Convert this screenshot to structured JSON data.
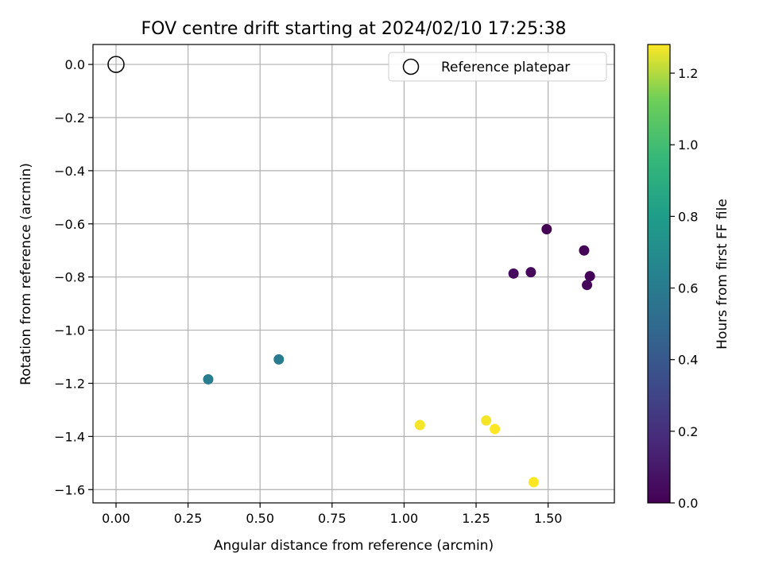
{
  "chart_data": {
    "type": "scatter",
    "title": "FOV centre drift starting at 2024/02/10 17:25:38",
    "xlabel": "Angular distance from reference (arcmin)",
    "ylabel": "Rotation from reference (arcmin)",
    "xlim": [
      -0.08,
      1.73
    ],
    "ylim": [
      -1.65,
      0.075
    ],
    "xticks": [
      0.0,
      0.25,
      0.5,
      0.75,
      1.0,
      1.25,
      1.5
    ],
    "xtick_labels": [
      "0.00",
      "0.25",
      "0.50",
      "0.75",
      "1.00",
      "1.25",
      "1.50"
    ],
    "yticks": [
      0.0,
      -0.2,
      -0.4,
      -0.6,
      -0.8,
      -1.0,
      -1.2,
      -1.4,
      -1.6
    ],
    "ytick_labels": [
      "0.0",
      "−0.2",
      "−0.4",
      "−0.6",
      "−0.8",
      "−1.0",
      "−1.2",
      "−1.4",
      "−1.6"
    ],
    "grid": true,
    "legend": {
      "placement": "top-right",
      "entries": [
        {
          "label": "Reference platepar",
          "marker": "hollow-circle"
        }
      ]
    },
    "reference_point": {
      "x": 0.0,
      "y": 0.0
    },
    "colormap": "viridis",
    "colorbar": {
      "label": "Hours from first FF file",
      "range": [
        0.0,
        1.28
      ],
      "ticks": [
        0.0,
        0.2,
        0.4,
        0.6,
        0.8,
        1.0,
        1.2
      ],
      "tick_labels": [
        "0.0",
        "0.2",
        "0.4",
        "0.6",
        "0.8",
        "1.0",
        "1.2"
      ]
    },
    "points": [
      {
        "x": 1.495,
        "y": -0.62,
        "hours": 0.0
      },
      {
        "x": 1.625,
        "y": -0.7,
        "hours": 0.01
      },
      {
        "x": 1.645,
        "y": -0.797,
        "hours": 0.01
      },
      {
        "x": 1.635,
        "y": -0.83,
        "hours": 0.02
      },
      {
        "x": 1.44,
        "y": -0.782,
        "hours": 0.03
      },
      {
        "x": 1.38,
        "y": -0.787,
        "hours": 0.04
      },
      {
        "x": 0.565,
        "y": -1.11,
        "hours": 0.6
      },
      {
        "x": 0.32,
        "y": -1.185,
        "hours": 0.61
      },
      {
        "x": 1.055,
        "y": -1.357,
        "hours": 1.27
      },
      {
        "x": 1.285,
        "y": -1.34,
        "hours": 1.27
      },
      {
        "x": 1.315,
        "y": -1.372,
        "hours": 1.28
      },
      {
        "x": 1.45,
        "y": -1.572,
        "hours": 1.28
      }
    ]
  }
}
